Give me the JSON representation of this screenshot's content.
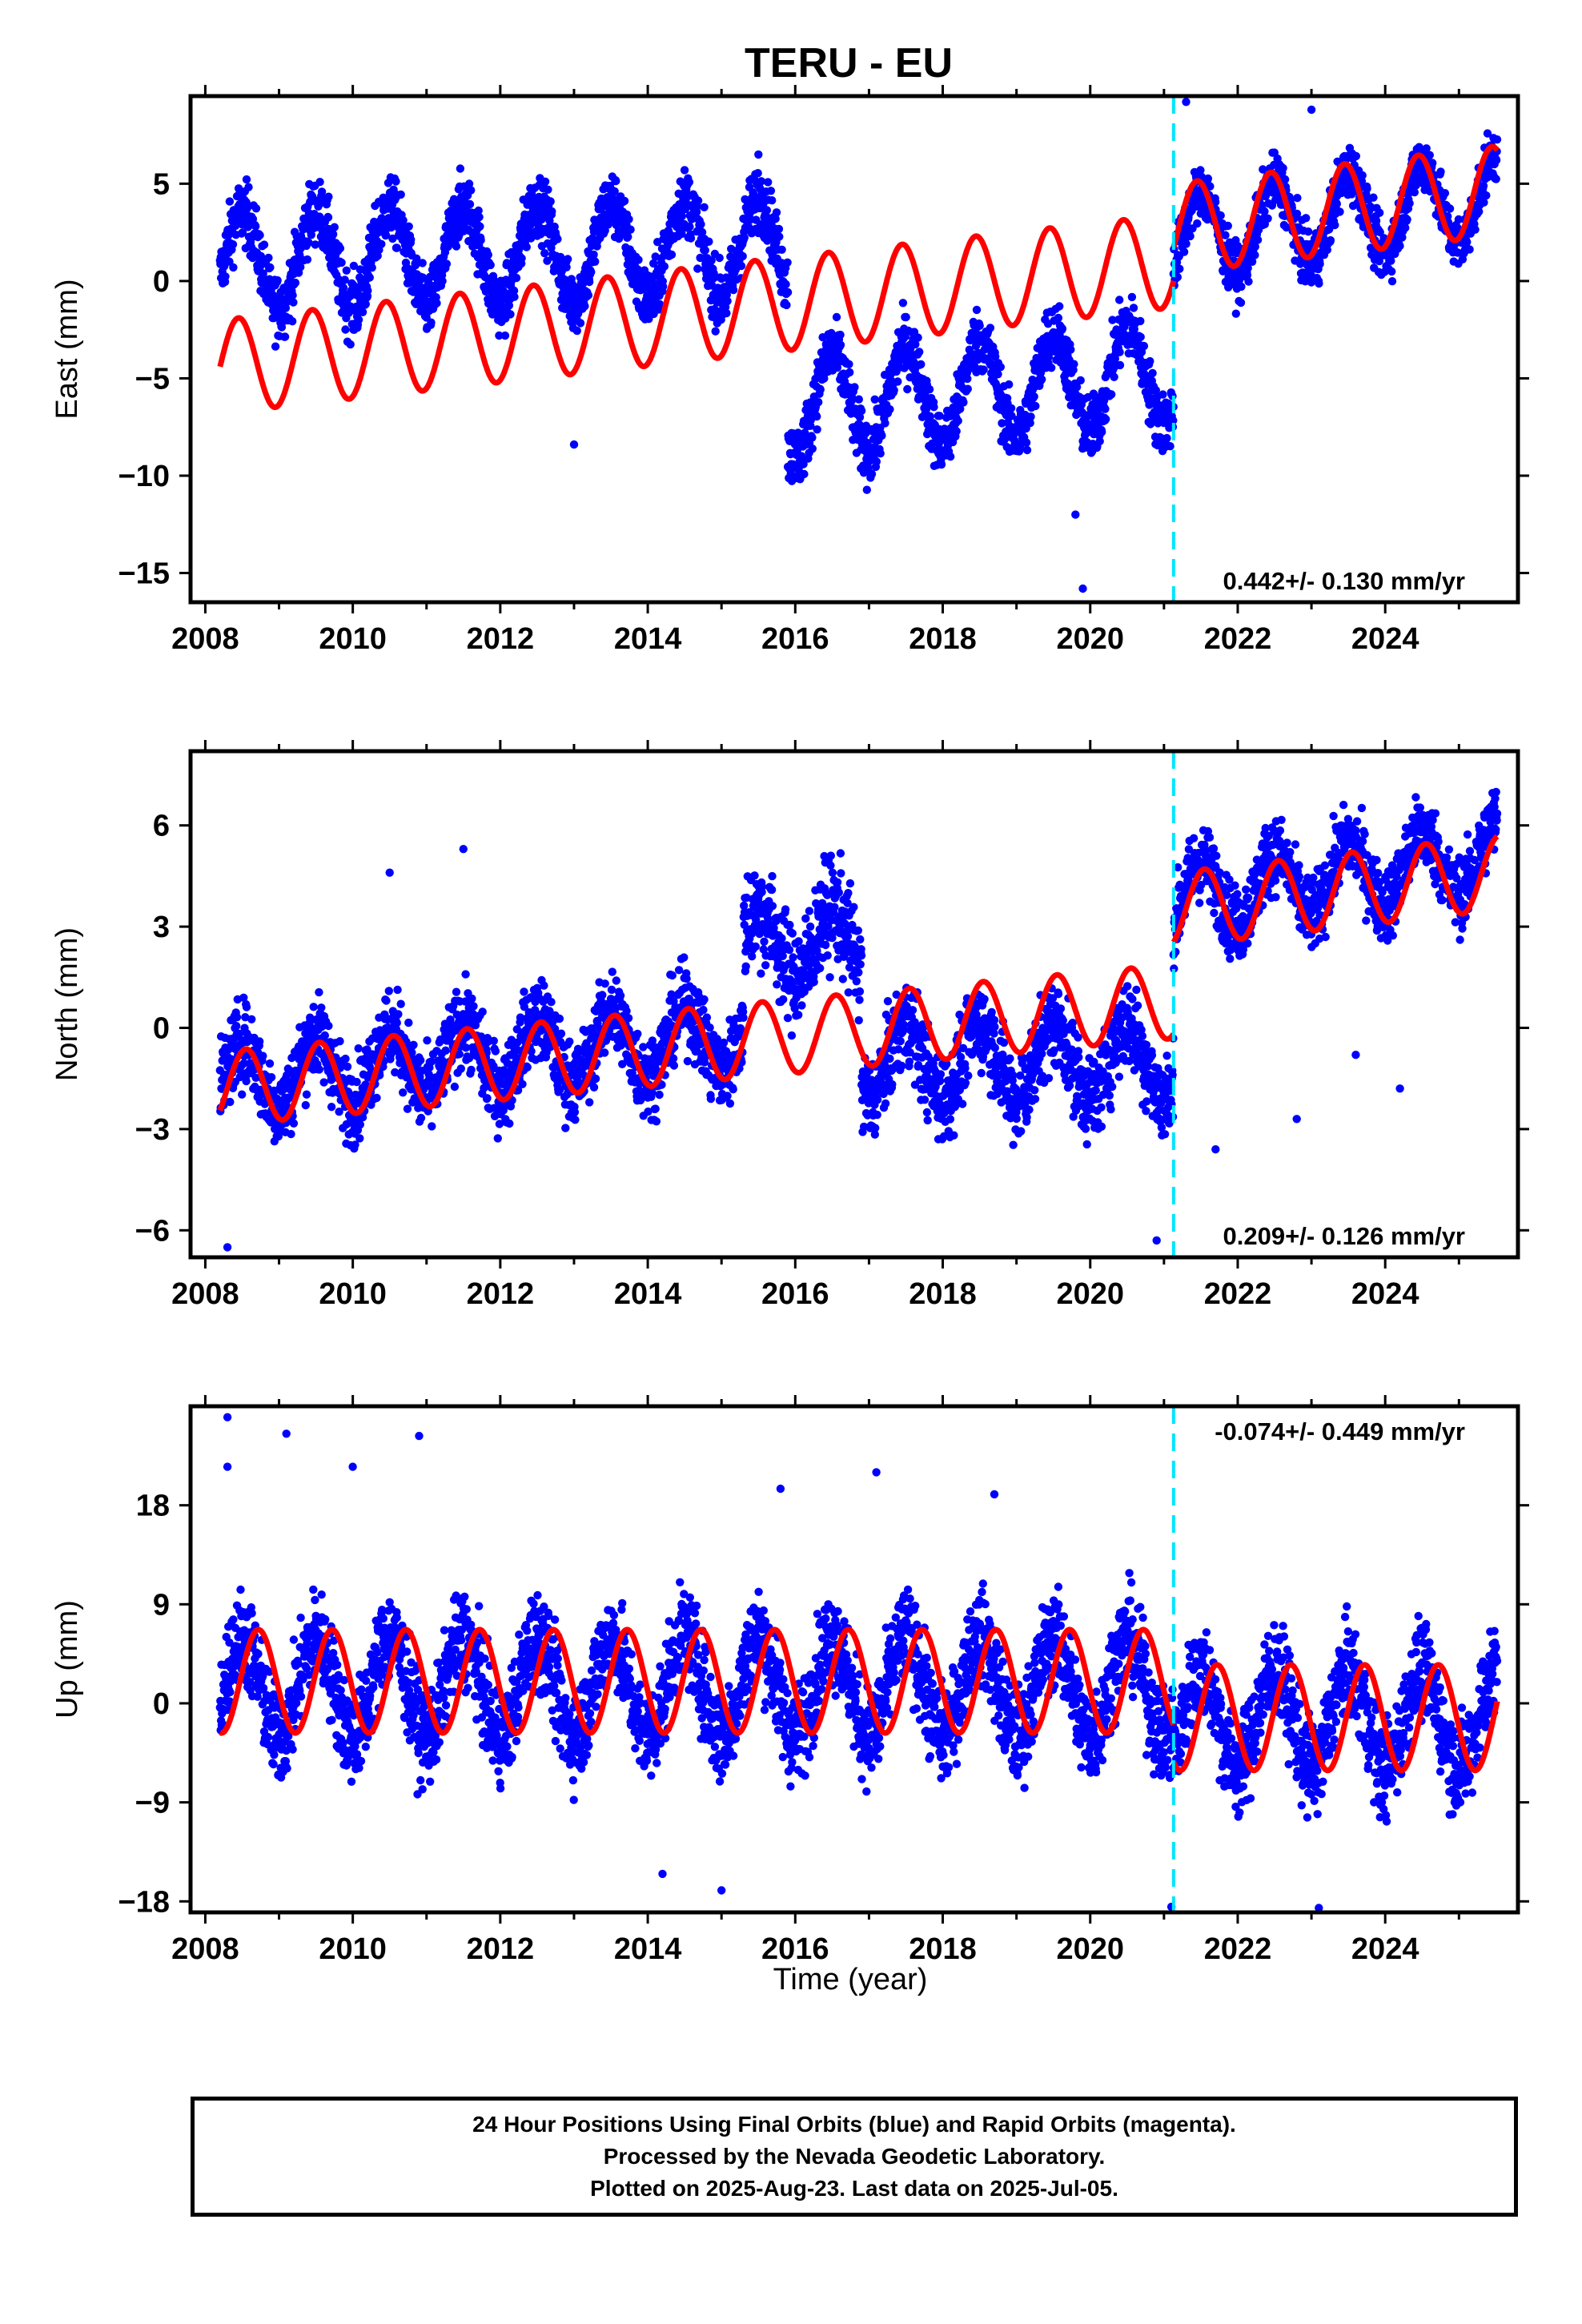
{
  "title": "TERU - EU",
  "colors": {
    "points": "#0000ff",
    "fit": "#ff0000",
    "break_line": "#00e5ff",
    "frame": "#000000"
  },
  "xlabel": "Time (year)",
  "chart_data": [
    {
      "type": "scatter",
      "panel": "east",
      "ylabel": "East (mm)",
      "xlim": [
        2007.8,
        2025.8
      ],
      "ylim": [
        -16.5,
        9.5
      ],
      "x_ticks": [
        2008,
        2010,
        2012,
        2014,
        2016,
        2018,
        2020,
        2022,
        2024
      ],
      "y_ticks": [
        -15,
        -10,
        -5,
        0,
        5
      ],
      "y_tick_labels": [
        "−15",
        "−10",
        "−5",
        "0",
        "5"
      ],
      "break_year": 2021.13,
      "rate_label": "0.442+/- 0.130 mm/yr",
      "rate_position": "bottom-right",
      "fit_model": {
        "segments": [
          {
            "from": 2008.2,
            "to": 2021.13,
            "offset": -4.4,
            "slope": 0.42,
            "amp": 2.4,
            "phase": 0.2
          },
          {
            "from": 2021.13,
            "to": 2025.52,
            "offset": 2.7,
            "slope": 0.44,
            "amp": 2.3,
            "phase": 0.2
          }
        ]
      },
      "point_model": {
        "pieces": [
          {
            "from": 2008.2,
            "to": 2015.9,
            "offset": 1.0,
            "slope": 0.1,
            "amp": 2.5,
            "noise": 1.5
          },
          {
            "from": 2015.9,
            "to": 2021.13,
            "offset": -6.5,
            "slope": 0.35,
            "amp": 2.6,
            "noise": 1.5
          },
          {
            "from": 2021.13,
            "to": 2025.52,
            "offset": 2.2,
            "slope": 0.5,
            "amp": 2.2,
            "noise": 1.3
          }
        ],
        "outliers": [
          [
            2013.0,
            -8.4
          ],
          [
            2019.9,
            -15.8
          ],
          [
            2021.3,
            9.2
          ],
          [
            2019.8,
            -12.0
          ],
          [
            2015.5,
            6.5
          ],
          [
            2023.0,
            8.8
          ]
        ]
      }
    },
    {
      "type": "scatter",
      "panel": "north",
      "ylabel": "North (mm)",
      "xlim": [
        2007.8,
        2025.8
      ],
      "ylim": [
        -6.8,
        8.2
      ],
      "x_ticks": [
        2008,
        2010,
        2012,
        2014,
        2016,
        2018,
        2020,
        2022,
        2024
      ],
      "y_ticks": [
        -6,
        -3,
        0,
        3,
        6
      ],
      "y_tick_labels": [
        "−6",
        "−3",
        "0",
        "3",
        "6"
      ],
      "break_year": 2021.13,
      "rate_label": "0.209+/- 0.126 mm/yr",
      "rate_position": "bottom-right",
      "fit_model": {
        "segments": [
          {
            "from": 2008.2,
            "to": 2021.13,
            "offset": -1.8,
            "slope": 0.2,
            "amp": 1.1,
            "phase": 0.3
          },
          {
            "from": 2021.13,
            "to": 2025.52,
            "offset": 3.5,
            "slope": 0.25,
            "amp": 1.1,
            "phase": 0.3
          }
        ]
      },
      "point_model": {
        "pieces": [
          {
            "from": 2008.2,
            "to": 2015.3,
            "offset": -1.5,
            "slope": 0.18,
            "amp": 1.0,
            "noise": 1.1
          },
          {
            "from": 2015.3,
            "to": 2016.9,
            "offset": 2.5,
            "slope": 0.0,
            "amp": 1.0,
            "noise": 1.4
          },
          {
            "from": 2016.9,
            "to": 2021.13,
            "offset": -1.0,
            "slope": 0.0,
            "amp": 1.1,
            "noise": 1.2
          },
          {
            "from": 2021.13,
            "to": 2025.52,
            "offset": 3.8,
            "slope": 0.3,
            "amp": 1.0,
            "noise": 1.0
          }
        ],
        "outliers": [
          [
            2010.5,
            4.6
          ],
          [
            2011.5,
            5.3
          ],
          [
            2022.8,
            -2.7
          ],
          [
            2021.7,
            -3.6
          ],
          [
            2024.2,
            -1.8
          ],
          [
            2023.6,
            -0.8
          ],
          [
            2008.3,
            -6.5
          ],
          [
            2020.9,
            -6.3
          ]
        ]
      }
    },
    {
      "type": "scatter",
      "panel": "up",
      "ylabel": "Up (mm)",
      "xlim": [
        2007.8,
        2025.8
      ],
      "ylim": [
        -19,
        27
      ],
      "x_ticks": [
        2008,
        2010,
        2012,
        2014,
        2016,
        2018,
        2020,
        2022,
        2024
      ],
      "y_ticks": [
        -18,
        -9,
        0,
        9,
        18
      ],
      "y_tick_labels": [
        "−18",
        "−9",
        "0",
        "9",
        "18"
      ],
      "break_year": 2021.13,
      "rate_label": "-0.074+/- 0.449 mm/yr",
      "rate_position": "top-right",
      "fit_model": {
        "segments": [
          {
            "from": 2008.2,
            "to": 2021.13,
            "offset": 2.0,
            "slope": 0.0,
            "amp": 4.7,
            "phase": 0.47
          },
          {
            "from": 2021.13,
            "to": 2025.52,
            "offset": -1.3,
            "slope": 0.0,
            "amp": 4.8,
            "phase": 0.47
          }
        ]
      },
      "point_model": {
        "pieces": [
          {
            "from": 2008.2,
            "to": 2021.13,
            "offset": 1.5,
            "slope": 0.0,
            "amp": 4.5,
            "noise": 4.0
          },
          {
            "from": 2021.13,
            "to": 2025.52,
            "offset": -1.5,
            "slope": 0.0,
            "amp": 4.5,
            "noise": 4.0
          }
        ],
        "outliers": [
          [
            2008.3,
            26.0
          ],
          [
            2008.3,
            21.5
          ],
          [
            2009.1,
            24.5
          ],
          [
            2010.0,
            21.5
          ],
          [
            2010.9,
            24.3
          ],
          [
            2017.1,
            21.0
          ],
          [
            2015.8,
            19.5
          ],
          [
            2018.7,
            19.0
          ],
          [
            2021.1,
            -18.5
          ],
          [
            2023.1,
            -18.6
          ],
          [
            2014.2,
            -15.5
          ],
          [
            2015.0,
            -17.0
          ]
        ]
      }
    }
  ],
  "caption": {
    "line1": "24 Hour Positions Using Final Orbits (blue) and Rapid Orbits (magenta).",
    "line2": "Processed by the Nevada Geodetic Laboratory.",
    "line3": "Plotted on 2025-Aug-23. Last data on 2025-Jul-05."
  }
}
